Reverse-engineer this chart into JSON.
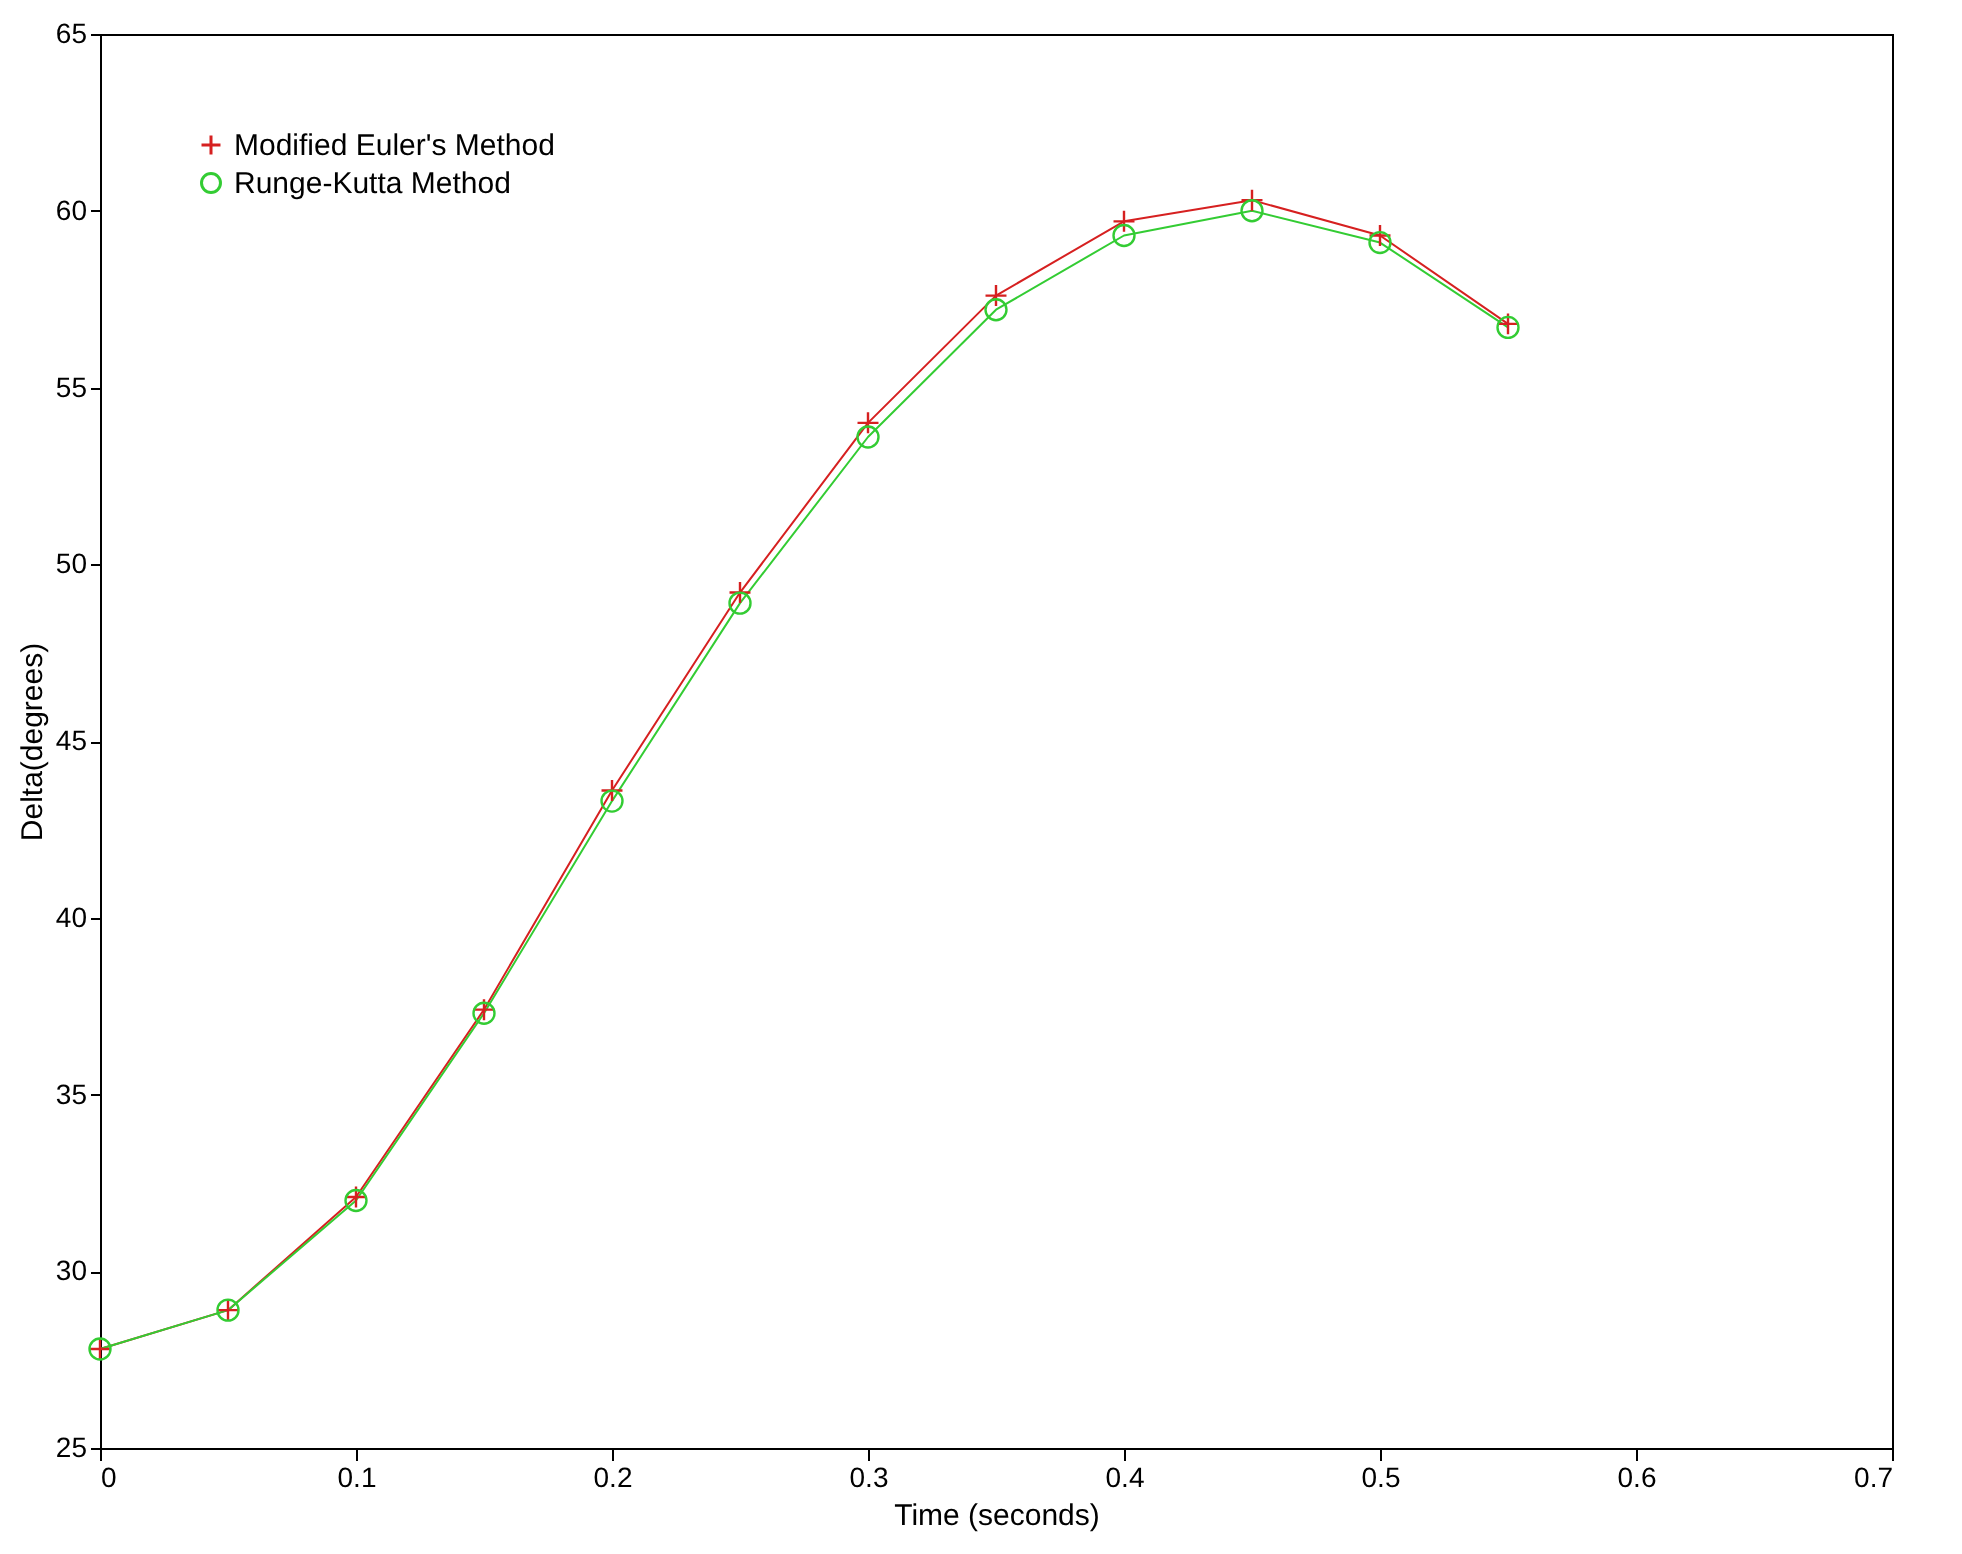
{
  "chart_data": {
    "type": "line",
    "xlabel": "Time (seconds)",
    "ylabel": "Delta(degrees)",
    "x": [
      0,
      0.05,
      0.1,
      0.15,
      0.2,
      0.25,
      0.3,
      0.35,
      0.4,
      0.45,
      0.5,
      0.55
    ],
    "series": [
      {
        "name": "Modified Euler's Method",
        "color": "#d62020",
        "marker": "cross",
        "values": [
          27.8,
          28.9,
          32.1,
          37.4,
          43.6,
          49.2,
          54.0,
          57.6,
          59.7,
          60.3,
          59.3,
          56.8
        ]
      },
      {
        "name": "Runge-Kutta Method",
        "color": "#33cc33",
        "marker": "circle",
        "values": [
          27.8,
          28.9,
          32.0,
          37.3,
          43.3,
          48.9,
          53.6,
          57.2,
          59.3,
          60.0,
          59.1,
          56.7
        ]
      }
    ],
    "xlim": [
      0,
      0.7
    ],
    "xticks": [
      0,
      0.1,
      0.2,
      0.3,
      0.4,
      0.5,
      0.6,
      0.7
    ],
    "ylim": [
      25,
      65
    ],
    "yticks": [
      25,
      30,
      35,
      40,
      45,
      50,
      55,
      60,
      65
    ],
    "grid": false,
    "legend": "top left",
    "line_style": "solid"
  }
}
